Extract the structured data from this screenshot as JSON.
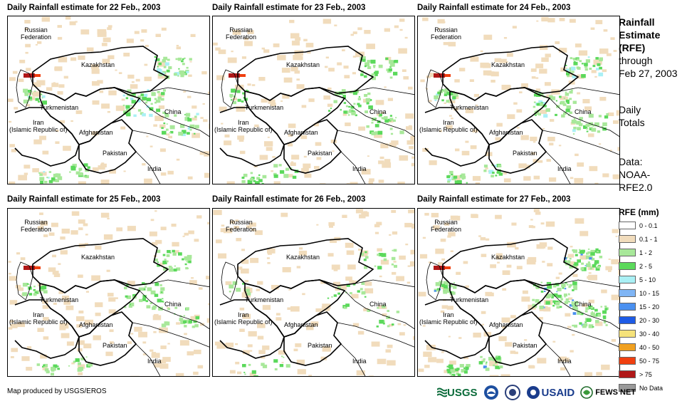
{
  "maps": [
    {
      "title": "Daily Rainfall estimate for 22 Feb., 2003"
    },
    {
      "title": "Daily Rainfall estimate for 23 Feb., 2003"
    },
    {
      "title": "Daily Rainfall estimate for 24 Feb., 2003"
    },
    {
      "title": "Daily Rainfall estimate for 25 Feb., 2003"
    },
    {
      "title": "Daily Rainfall estimate for 26 Feb., 2003"
    },
    {
      "title": "Daily Rainfall estimate for 27 Feb., 2003"
    }
  ],
  "labels": {
    "russia": "Russian\nFederation",
    "kazakhstan": "Kazakhstan",
    "turkmenistan": "Turkmenistan",
    "iran": "Iran\n(Islamic Republic of)",
    "afghanistan": "Afghanistan",
    "pakistan": "Pakistan",
    "china": "China",
    "india": "India"
  },
  "side": {
    "line1": "Rainfall",
    "line2": "Estimate",
    "line3": "(RFE)",
    "line4": "through",
    "line5": "Feb 27, 2003",
    "line6": "Daily",
    "line7": "Totals",
    "line8": "Data:",
    "line9": "NOAA-",
    "line10": "RFE2.0"
  },
  "legend": {
    "title": "RFE (mm)",
    "items": [
      {
        "label": "0 - 0.1",
        "color": "#ffffff"
      },
      {
        "label": "0.1 - 1",
        "color": "#f1dcbc"
      },
      {
        "label": "1 - 2",
        "color": "#a8e89a"
      },
      {
        "label": "2 - 5",
        "color": "#5bd95b"
      },
      {
        "label": "5 - 10",
        "color": "#aaf0f5"
      },
      {
        "label": "10 - 15",
        "color": "#7fb5f5"
      },
      {
        "label": "15 - 20",
        "color": "#4a90f0"
      },
      {
        "label": "20 - 30",
        "color": "#1e5be6"
      },
      {
        "label": "30 - 40",
        "color": "#f5e27a"
      },
      {
        "label": "40 - 50",
        "color": "#f0a020"
      },
      {
        "label": "50 - 75",
        "color": "#f04010"
      },
      {
        "label": "> 75",
        "color": "#b01818"
      },
      {
        "label": "No Data",
        "color": "#9a9a9a"
      }
    ]
  },
  "footer": "Map produced by USGS/EROS",
  "logos": {
    "usgs": "USGS",
    "usaid": "USAID",
    "fews": "FEWS NET"
  }
}
